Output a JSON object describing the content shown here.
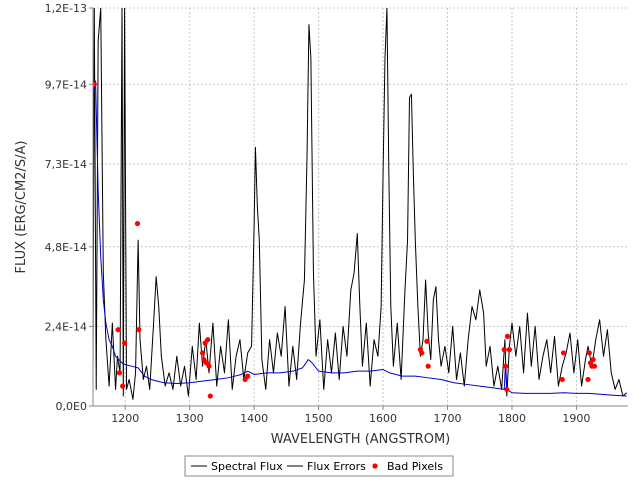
{
  "chart_data": {
    "type": "line",
    "title": "",
    "xlabel": "WAVELENGTH (ANGSTROM)",
    "ylabel": "FLUX (ERG/CM2/S/A)",
    "xlim": [
      1150,
      1980
    ],
    "ylim": [
      0,
      1.2e-13
    ],
    "x_ticks": [
      1200,
      1300,
      1400,
      1500,
      1600,
      1700,
      1800,
      1900
    ],
    "x_tick_labels": [
      "1200",
      "1300",
      "1400",
      "1500",
      "1600",
      "1700",
      "1800",
      "1900"
    ],
    "y_ticks": [
      0,
      2.4e-14,
      4.8e-14,
      7.3e-14,
      9.7e-14,
      1.2e-13
    ],
    "y_tick_labels": [
      "0,0E0",
      "2,4E-14",
      "4,8E-14",
      "7,3E-14",
      "9,7E-14",
      "1,2E-13"
    ],
    "grid": true,
    "legend_position": "bottom",
    "series": [
      {
        "name": "Spectral Flux",
        "color": "#000000",
        "type": "line",
        "points": [
          [
            1150,
            1e-14
          ],
          [
            1152,
            1.2e-13
          ],
          [
            1155,
            5e-15
          ],
          [
            1158,
            1.1e-13
          ],
          [
            1162,
            1.2e-13
          ],
          [
            1166,
            4e-14
          ],
          [
            1170,
            2e-14
          ],
          [
            1175,
            6e-15
          ],
          [
            1180,
            2.5e-14
          ],
          [
            1185,
            5e-15
          ],
          [
            1188,
            1.5e-14
          ],
          [
            1192,
            1e-14
          ],
          [
            1195,
            1.2e-13
          ],
          [
            1197,
            3e-15
          ],
          [
            1199,
            1.2e-13
          ],
          [
            1202,
            5e-15
          ],
          [
            1206,
            8e-15
          ],
          [
            1212,
            2e-15
          ],
          [
            1216,
            1e-14
          ],
          [
            1220,
            5e-14
          ],
          [
            1223,
            2e-14
          ],
          [
            1228,
            8e-15
          ],
          [
            1233,
            1.2e-14
          ],
          [
            1238,
            5e-15
          ],
          [
            1244,
            2.5e-14
          ],
          [
            1248,
            3.9e-14
          ],
          [
            1252,
            3e-14
          ],
          [
            1256,
            1.5e-14
          ],
          [
            1262,
            6e-15
          ],
          [
            1268,
            1e-14
          ],
          [
            1274,
            5e-15
          ],
          [
            1280,
            1.5e-14
          ],
          [
            1286,
            6e-15
          ],
          [
            1292,
            1.2e-14
          ],
          [
            1298,
            3e-15
          ],
          [
            1304,
            1.8e-14
          ],
          [
            1310,
            8e-15
          ],
          [
            1315,
            2.5e-14
          ],
          [
            1320,
            1.2e-14
          ],
          [
            1325,
            2e-14
          ],
          [
            1330,
            1e-14
          ],
          [
            1336,
            2.5e-14
          ],
          [
            1342,
            6e-15
          ],
          [
            1348,
            1.8e-14
          ],
          [
            1354,
            1e-14
          ],
          [
            1360,
            2.6e-14
          ],
          [
            1366,
            5e-15
          ],
          [
            1372,
            1.5e-14
          ],
          [
            1378,
            2e-14
          ],
          [
            1384,
            8e-15
          ],
          [
            1390,
            1.6e-14
          ],
          [
            1396,
            1.8e-14
          ],
          [
            1400,
            5.5e-14
          ],
          [
            1402,
            7.8e-14
          ],
          [
            1405,
            6e-14
          ],
          [
            1408,
            5e-14
          ],
          [
            1412,
            1.4e-14
          ],
          [
            1418,
            5e-15
          ],
          [
            1424,
            2e-14
          ],
          [
            1430,
            1e-14
          ],
          [
            1436,
            2.2e-14
          ],
          [
            1442,
            1.5e-14
          ],
          [
            1448,
            3e-14
          ],
          [
            1454,
            6e-15
          ],
          [
            1460,
            1.8e-14
          ],
          [
            1466,
            8e-15
          ],
          [
            1472,
            2.5e-14
          ],
          [
            1478,
            3.8e-14
          ],
          [
            1482,
            7.5e-14
          ],
          [
            1485,
            1.15e-13
          ],
          [
            1488,
            1.05e-13
          ],
          [
            1492,
            4e-14
          ],
          [
            1496,
            1.5e-14
          ],
          [
            1502,
            2.6e-14
          ],
          [
            1508,
            5e-15
          ],
          [
            1514,
            2e-14
          ],
          [
            1520,
            1e-14
          ],
          [
            1526,
            2.2e-14
          ],
          [
            1532,
            8e-15
          ],
          [
            1538,
            2.4e-14
          ],
          [
            1544,
            1.5e-14
          ],
          [
            1550,
            3.5e-14
          ],
          [
            1555,
            4e-14
          ],
          [
            1560,
            5.2e-14
          ],
          [
            1564,
            3e-14
          ],
          [
            1568,
            1.2e-14
          ],
          [
            1574,
            2.5e-14
          ],
          [
            1580,
            6e-15
          ],
          [
            1586,
            2e-14
          ],
          [
            1592,
            1.5e-14
          ],
          [
            1597,
            3e-14
          ],
          [
            1600,
            7e-14
          ],
          [
            1603,
            1.05e-13
          ],
          [
            1606,
            1.2e-13
          ],
          [
            1609,
            7e-14
          ],
          [
            1612,
            3e-14
          ],
          [
            1616,
            1.2e-14
          ],
          [
            1622,
            2.5e-14
          ],
          [
            1628,
            8e-15
          ],
          [
            1634,
            3.5e-14
          ],
          [
            1638,
            5e-14
          ],
          [
            1641,
            9.3e-14
          ],
          [
            1644,
            9.4e-14
          ],
          [
            1647,
            7e-14
          ],
          [
            1650,
            5e-14
          ],
          [
            1654,
            3e-14
          ],
          [
            1658,
            1.5e-14
          ],
          [
            1662,
            2e-14
          ],
          [
            1666,
            3.8e-14
          ],
          [
            1670,
            2.2e-14
          ],
          [
            1674,
            1.4e-14
          ],
          [
            1678,
            3.2e-14
          ],
          [
            1682,
            3.6e-14
          ],
          [
            1686,
            2e-14
          ],
          [
            1690,
            1.2e-14
          ],
          [
            1696,
            1.8e-14
          ],
          [
            1702,
            1e-14
          ],
          [
            1708,
            2.4e-14
          ],
          [
            1714,
            8e-15
          ],
          [
            1720,
            1.6e-14
          ],
          [
            1726,
            6e-15
          ],
          [
            1732,
            2e-14
          ],
          [
            1738,
            3e-14
          ],
          [
            1744,
            2.6e-14
          ],
          [
            1750,
            3.5e-14
          ],
          [
            1756,
            2.8e-14
          ],
          [
            1760,
            1.2e-14
          ],
          [
            1766,
            1.8e-14
          ],
          [
            1772,
            6e-15
          ],
          [
            1778,
            1.2e-14
          ],
          [
            1784,
            5e-15
          ],
          [
            1789,
            2e-14
          ],
          [
            1792,
            3e-15
          ],
          [
            1796,
            1.8e-14
          ],
          [
            1800,
            2.5e-14
          ],
          [
            1806,
            1.5e-14
          ],
          [
            1812,
            2.4e-14
          ],
          [
            1818,
            1e-14
          ],
          [
            1824,
            2.8e-14
          ],
          [
            1830,
            1.2e-14
          ],
          [
            1836,
            2.4e-14
          ],
          [
            1842,
            8e-15
          ],
          [
            1848,
            1.5e-14
          ],
          [
            1854,
            2e-14
          ],
          [
            1860,
            1e-14
          ],
          [
            1866,
            2.1e-14
          ],
          [
            1872,
            6e-15
          ],
          [
            1878,
            1.2e-14
          ],
          [
            1884,
            1.6e-14
          ],
          [
            1890,
            2.2e-14
          ],
          [
            1896,
            1e-14
          ],
          [
            1902,
            2e-14
          ],
          [
            1908,
            6e-15
          ],
          [
            1914,
            1.4e-14
          ],
          [
            1918,
            1.8e-14
          ],
          [
            1924,
            1.2e-14
          ],
          [
            1930,
            2e-14
          ],
          [
            1936,
            2.6e-14
          ],
          [
            1942,
            1.5e-14
          ],
          [
            1948,
            2.3e-14
          ],
          [
            1954,
            1e-14
          ],
          [
            1960,
            5e-15
          ],
          [
            1966,
            8e-15
          ],
          [
            1972,
            3e-15
          ],
          [
            1978,
            4e-15
          ]
        ]
      },
      {
        "name": "Flux Errors",
        "color": "#0000cc",
        "type": "line",
        "points": [
          [
            1152,
            9.5e-14
          ],
          [
            1154,
            9.8e-14
          ],
          [
            1158,
            6.5e-14
          ],
          [
            1162,
            4.5e-14
          ],
          [
            1166,
            3.2e-14
          ],
          [
            1170,
            2.5e-14
          ],
          [
            1175,
            2e-14
          ],
          [
            1180,
            1.8e-14
          ],
          [
            1185,
            1.5e-14
          ],
          [
            1190,
            1.4e-14
          ],
          [
            1195,
            1.3e-14
          ],
          [
            1200,
            1.25e-14
          ],
          [
            1210,
            1.2e-14
          ],
          [
            1220,
            1.15e-14
          ],
          [
            1230,
            9e-15
          ],
          [
            1240,
            8e-15
          ],
          [
            1250,
            7.5e-15
          ],
          [
            1260,
            7e-15
          ],
          [
            1280,
            6.8e-15
          ],
          [
            1300,
            7e-15
          ],
          [
            1320,
            7.5e-15
          ],
          [
            1340,
            8e-15
          ],
          [
            1360,
            8.5e-15
          ],
          [
            1380,
            9.5e-15
          ],
          [
            1390,
            1.05e-14
          ],
          [
            1400,
            9.5e-15
          ],
          [
            1420,
            1e-14
          ],
          [
            1440,
            1e-14
          ],
          [
            1460,
            1.05e-14
          ],
          [
            1475,
            1.15e-14
          ],
          [
            1484,
            1.4e-14
          ],
          [
            1490,
            1.3e-14
          ],
          [
            1500,
            1.05e-14
          ],
          [
            1520,
            1e-14
          ],
          [
            1540,
            1e-14
          ],
          [
            1560,
            1.05e-14
          ],
          [
            1580,
            1.05e-14
          ],
          [
            1600,
            1.1e-14
          ],
          [
            1610,
            1e-14
          ],
          [
            1630,
            9e-15
          ],
          [
            1650,
            9e-15
          ],
          [
            1670,
            8.5e-15
          ],
          [
            1690,
            8e-15
          ],
          [
            1710,
            7e-15
          ],
          [
            1730,
            6.5e-15
          ],
          [
            1750,
            6e-15
          ],
          [
            1770,
            5.5e-15
          ],
          [
            1788,
            5e-15
          ],
          [
            1790,
            1.3e-14
          ],
          [
            1792,
            5e-15
          ],
          [
            1800,
            4e-15
          ],
          [
            1820,
            3.8e-15
          ],
          [
            1840,
            3.8e-15
          ],
          [
            1860,
            3.8e-15
          ],
          [
            1880,
            4e-15
          ],
          [
            1900,
            3.8e-15
          ],
          [
            1920,
            3.8e-15
          ],
          [
            1940,
            3.5e-15
          ],
          [
            1960,
            3.2e-15
          ],
          [
            1978,
            3e-15
          ]
        ]
      },
      {
        "name": "Bad Pixels",
        "color": "#ff0000",
        "type": "scatter",
        "points": [
          [
            1152,
            9.7e-14
          ],
          [
            1189,
            2.3e-14
          ],
          [
            1191,
            1e-14
          ],
          [
            1196,
            6e-15
          ],
          [
            1199,
            1.9e-14
          ],
          [
            1219,
            5.5e-14
          ],
          [
            1221,
            2.3e-14
          ],
          [
            1320,
            1.6e-14
          ],
          [
            1322,
            1.4e-14
          ],
          [
            1324,
            1.9e-14
          ],
          [
            1326,
            1.3e-14
          ],
          [
            1328,
            2e-14
          ],
          [
            1330,
            1.2e-14
          ],
          [
            1332,
            3e-15
          ],
          [
            1386,
            8e-15
          ],
          [
            1390,
            9e-15
          ],
          [
            1658,
            1.7e-14
          ],
          [
            1660,
            1.6e-14
          ],
          [
            1668,
            1.95e-14
          ],
          [
            1670,
            1.2e-14
          ],
          [
            1788,
            1.7e-14
          ],
          [
            1790,
            1.2e-14
          ],
          [
            1792,
            5e-15
          ],
          [
            1793,
            2.1e-14
          ],
          [
            1796,
            1.7e-14
          ],
          [
            1878,
            8e-15
          ],
          [
            1880,
            1.6e-14
          ],
          [
            1918,
            8e-15
          ],
          [
            1920,
            1.6e-14
          ],
          [
            1922,
            1.3e-14
          ],
          [
            1924,
            1.2e-14
          ],
          [
            1926,
            1.4e-14
          ],
          [
            1928,
            1.2e-14
          ]
        ]
      }
    ]
  }
}
